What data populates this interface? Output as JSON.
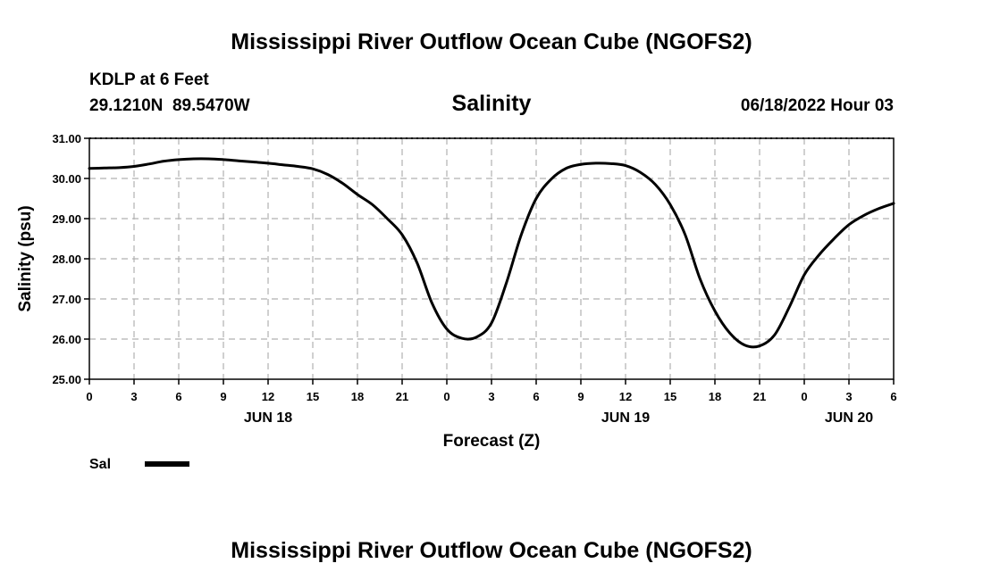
{
  "page": {
    "title": "Mississippi River Outflow Ocean Cube (NGOFS2)",
    "footer_title": "Mississippi River Outflow Ocean Cube (NGOFS2)",
    "station_line1": "KDLP at 6 Feet",
    "station_line2": "29.1210N  89.5470W",
    "chart_title": "Salinity",
    "date_label": "06/18/2022 Hour 03",
    "line_color": "#000000",
    "grid_color": "#b0b0b0"
  },
  "chart_data": {
    "type": "line",
    "title": "Salinity",
    "xlabel": "Forecast (Z)",
    "ylabel": "Salinity (psu)",
    "ylim": [
      25.0,
      31.0
    ],
    "xlim": [
      0,
      54
    ],
    "grid": true,
    "x_tick_labels": [
      "0",
      "3",
      "6",
      "9",
      "12",
      "15",
      "18",
      "21",
      "0",
      "3",
      "6",
      "9",
      "12",
      "15",
      "18",
      "21",
      "0",
      "3",
      "6"
    ],
    "y_tick_labels": [
      "25.00",
      "26.00",
      "27.00",
      "28.00",
      "29.00",
      "30.00",
      "31.00"
    ],
    "day_labels": [
      {
        "hour": 12,
        "label": "JUN 18"
      },
      {
        "hour": 36,
        "label": "JUN 19"
      },
      {
        "hour": 51,
        "label": "JUN 20"
      }
    ],
    "legend": [
      {
        "name": "Sal",
        "color": "#000000"
      }
    ],
    "legend_position": "bottom-left",
    "series": [
      {
        "name": "Sal",
        "x": [
          0,
          1,
          2,
          3,
          4,
          5,
          6,
          7,
          8,
          9,
          10,
          11,
          12,
          13,
          14,
          15,
          16,
          17,
          18,
          19,
          20,
          21,
          22,
          23,
          24,
          25,
          26,
          27,
          28,
          29,
          30,
          31,
          32,
          33,
          34,
          35,
          36,
          37,
          38,
          39,
          40,
          41,
          42,
          43,
          44,
          45,
          46,
          47,
          48,
          49,
          50,
          51,
          52,
          53,
          54
        ],
        "values": [
          30.25,
          30.26,
          30.27,
          30.3,
          30.36,
          30.43,
          30.47,
          30.49,
          30.49,
          30.47,
          30.44,
          30.41,
          30.38,
          30.34,
          30.3,
          30.24,
          30.1,
          29.88,
          29.6,
          29.35,
          29.0,
          28.6,
          27.9,
          26.9,
          26.25,
          26.02,
          26.05,
          26.4,
          27.4,
          28.6,
          29.5,
          29.98,
          30.25,
          30.35,
          30.38,
          30.37,
          30.32,
          30.15,
          29.85,
          29.35,
          28.6,
          27.5,
          26.7,
          26.15,
          25.85,
          25.83,
          26.1,
          26.8,
          27.6,
          28.1,
          28.5,
          28.85,
          29.08,
          29.25,
          29.38
        ]
      }
    ]
  }
}
